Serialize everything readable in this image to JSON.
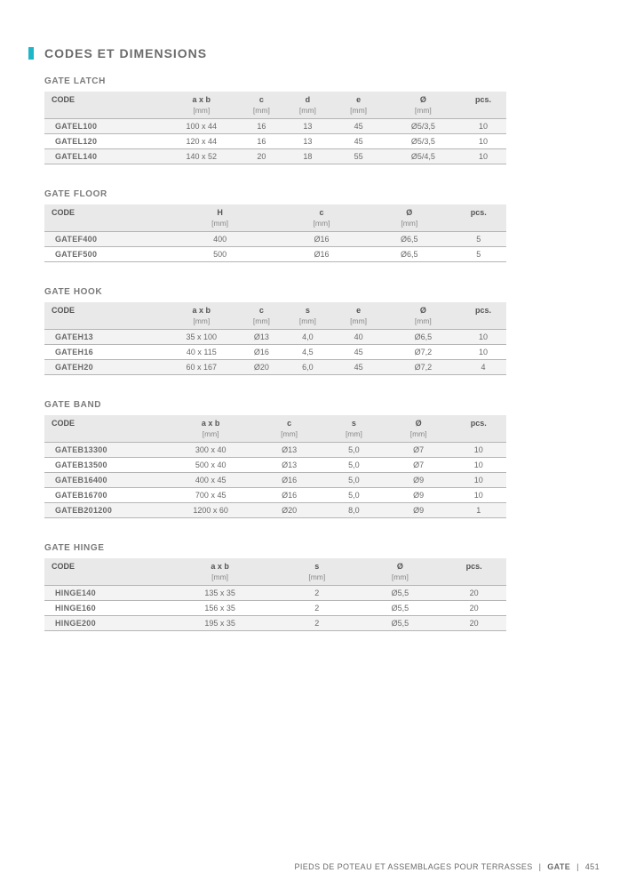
{
  "title": "CODES ET DIMENSIONS",
  "footer": {
    "text": "PIEDS DE POTEAU ET ASSEMBLAGES POUR TERRASSES",
    "category": "GATE",
    "page": "451"
  },
  "colors": {
    "accent": "#1fb6c8",
    "header_bg": "#e9e9e9",
    "row_alt_bg": "#f3f3f3",
    "text_main": "#6a6a6a",
    "border": "#b5b5b5",
    "background": "#ffffff"
  },
  "font": {
    "title_size_pt": 14,
    "caption_size_pt": 10,
    "table_size_pt": 9,
    "unit_size_pt": 8.5,
    "footer_size_pt": 9
  },
  "tables": [
    {
      "caption": "GATE LATCH",
      "columns": [
        "CODE",
        "a x b",
        "c",
        "d",
        "e",
        "Ø",
        "pcs."
      ],
      "units": [
        "",
        "[mm]",
        "[mm]",
        "[mm]",
        "[mm]",
        "[mm]",
        ""
      ],
      "col_widths": [
        "26%",
        "16%",
        "10%",
        "10%",
        "12%",
        "16%",
        "10%"
      ],
      "rows": [
        [
          "GATEL100",
          "100 x 44",
          "16",
          "13",
          "45",
          "Ø5/3,5",
          "10"
        ],
        [
          "GATEL120",
          "120 x 44",
          "16",
          "13",
          "45",
          "Ø5/3,5",
          "10"
        ],
        [
          "GATEL140",
          "140 x 52",
          "20",
          "18",
          "55",
          "Ø5/4,5",
          "10"
        ]
      ]
    },
    {
      "caption": "GATE FLOOR",
      "columns": [
        "CODE",
        "H",
        "c",
        "Ø",
        "pcs."
      ],
      "units": [
        "",
        "[mm]",
        "[mm]",
        "[mm]",
        ""
      ],
      "col_widths": [
        "26%",
        "24%",
        "20%",
        "18%",
        "12%"
      ],
      "rows": [
        [
          "GATEF400",
          "400",
          "Ø16",
          "Ø6,5",
          "5"
        ],
        [
          "GATEF500",
          "500",
          "Ø16",
          "Ø6,5",
          "5"
        ]
      ]
    },
    {
      "caption": "GATE HOOK",
      "columns": [
        "CODE",
        "a x b",
        "c",
        "s",
        "e",
        "Ø",
        "pcs."
      ],
      "units": [
        "",
        "[mm]",
        "[mm]",
        "[mm]",
        "[mm]",
        "[mm]",
        ""
      ],
      "col_widths": [
        "26%",
        "16%",
        "10%",
        "10%",
        "12%",
        "16%",
        "10%"
      ],
      "rows": [
        [
          "GATEH13",
          "35 x 100",
          "Ø13",
          "4,0",
          "40",
          "Ø6,5",
          "10"
        ],
        [
          "GATEH16",
          "40 x 115",
          "Ø16",
          "4,5",
          "45",
          "Ø7,2",
          "10"
        ],
        [
          "GATEH20",
          "60 x 167",
          "Ø20",
          "6,0",
          "45",
          "Ø7,2",
          "4"
        ]
      ]
    },
    {
      "caption": "GATE BAND",
      "columns": [
        "CODE",
        "a x b",
        "c",
        "s",
        "Ø",
        "pcs."
      ],
      "units": [
        "",
        "[mm]",
        "[mm]",
        "[mm]",
        "[mm]",
        ""
      ],
      "col_widths": [
        "26%",
        "20%",
        "14%",
        "14%",
        "14%",
        "12%"
      ],
      "rows": [
        [
          "GATEB13300",
          "300 x 40",
          "Ø13",
          "5,0",
          "Ø7",
          "10"
        ],
        [
          "GATEB13500",
          "500 x 40",
          "Ø13",
          "5,0",
          "Ø7",
          "10"
        ],
        [
          "GATEB16400",
          "400 x 45",
          "Ø16",
          "5,0",
          "Ø9",
          "10"
        ],
        [
          "GATEB16700",
          "700 x 45",
          "Ø16",
          "5,0",
          "Ø9",
          "10"
        ],
        [
          "GATEB201200",
          "1200 x 60",
          "Ø20",
          "8,0",
          "Ø9",
          "1"
        ]
      ]
    },
    {
      "caption": "GATE HINGE",
      "columns": [
        "CODE",
        "a x b",
        "s",
        "Ø",
        "pcs."
      ],
      "units": [
        "",
        "[mm]",
        "[mm]",
        "[mm]",
        ""
      ],
      "col_widths": [
        "26%",
        "24%",
        "18%",
        "18%",
        "14%"
      ],
      "rows": [
        [
          "HINGE140",
          "135 x 35",
          "2",
          "Ø5,5",
          "20"
        ],
        [
          "HINGE160",
          "156 x 35",
          "2",
          "Ø5,5",
          "20"
        ],
        [
          "HINGE200",
          "195 x 35",
          "2",
          "Ø5,5",
          "20"
        ]
      ]
    }
  ]
}
